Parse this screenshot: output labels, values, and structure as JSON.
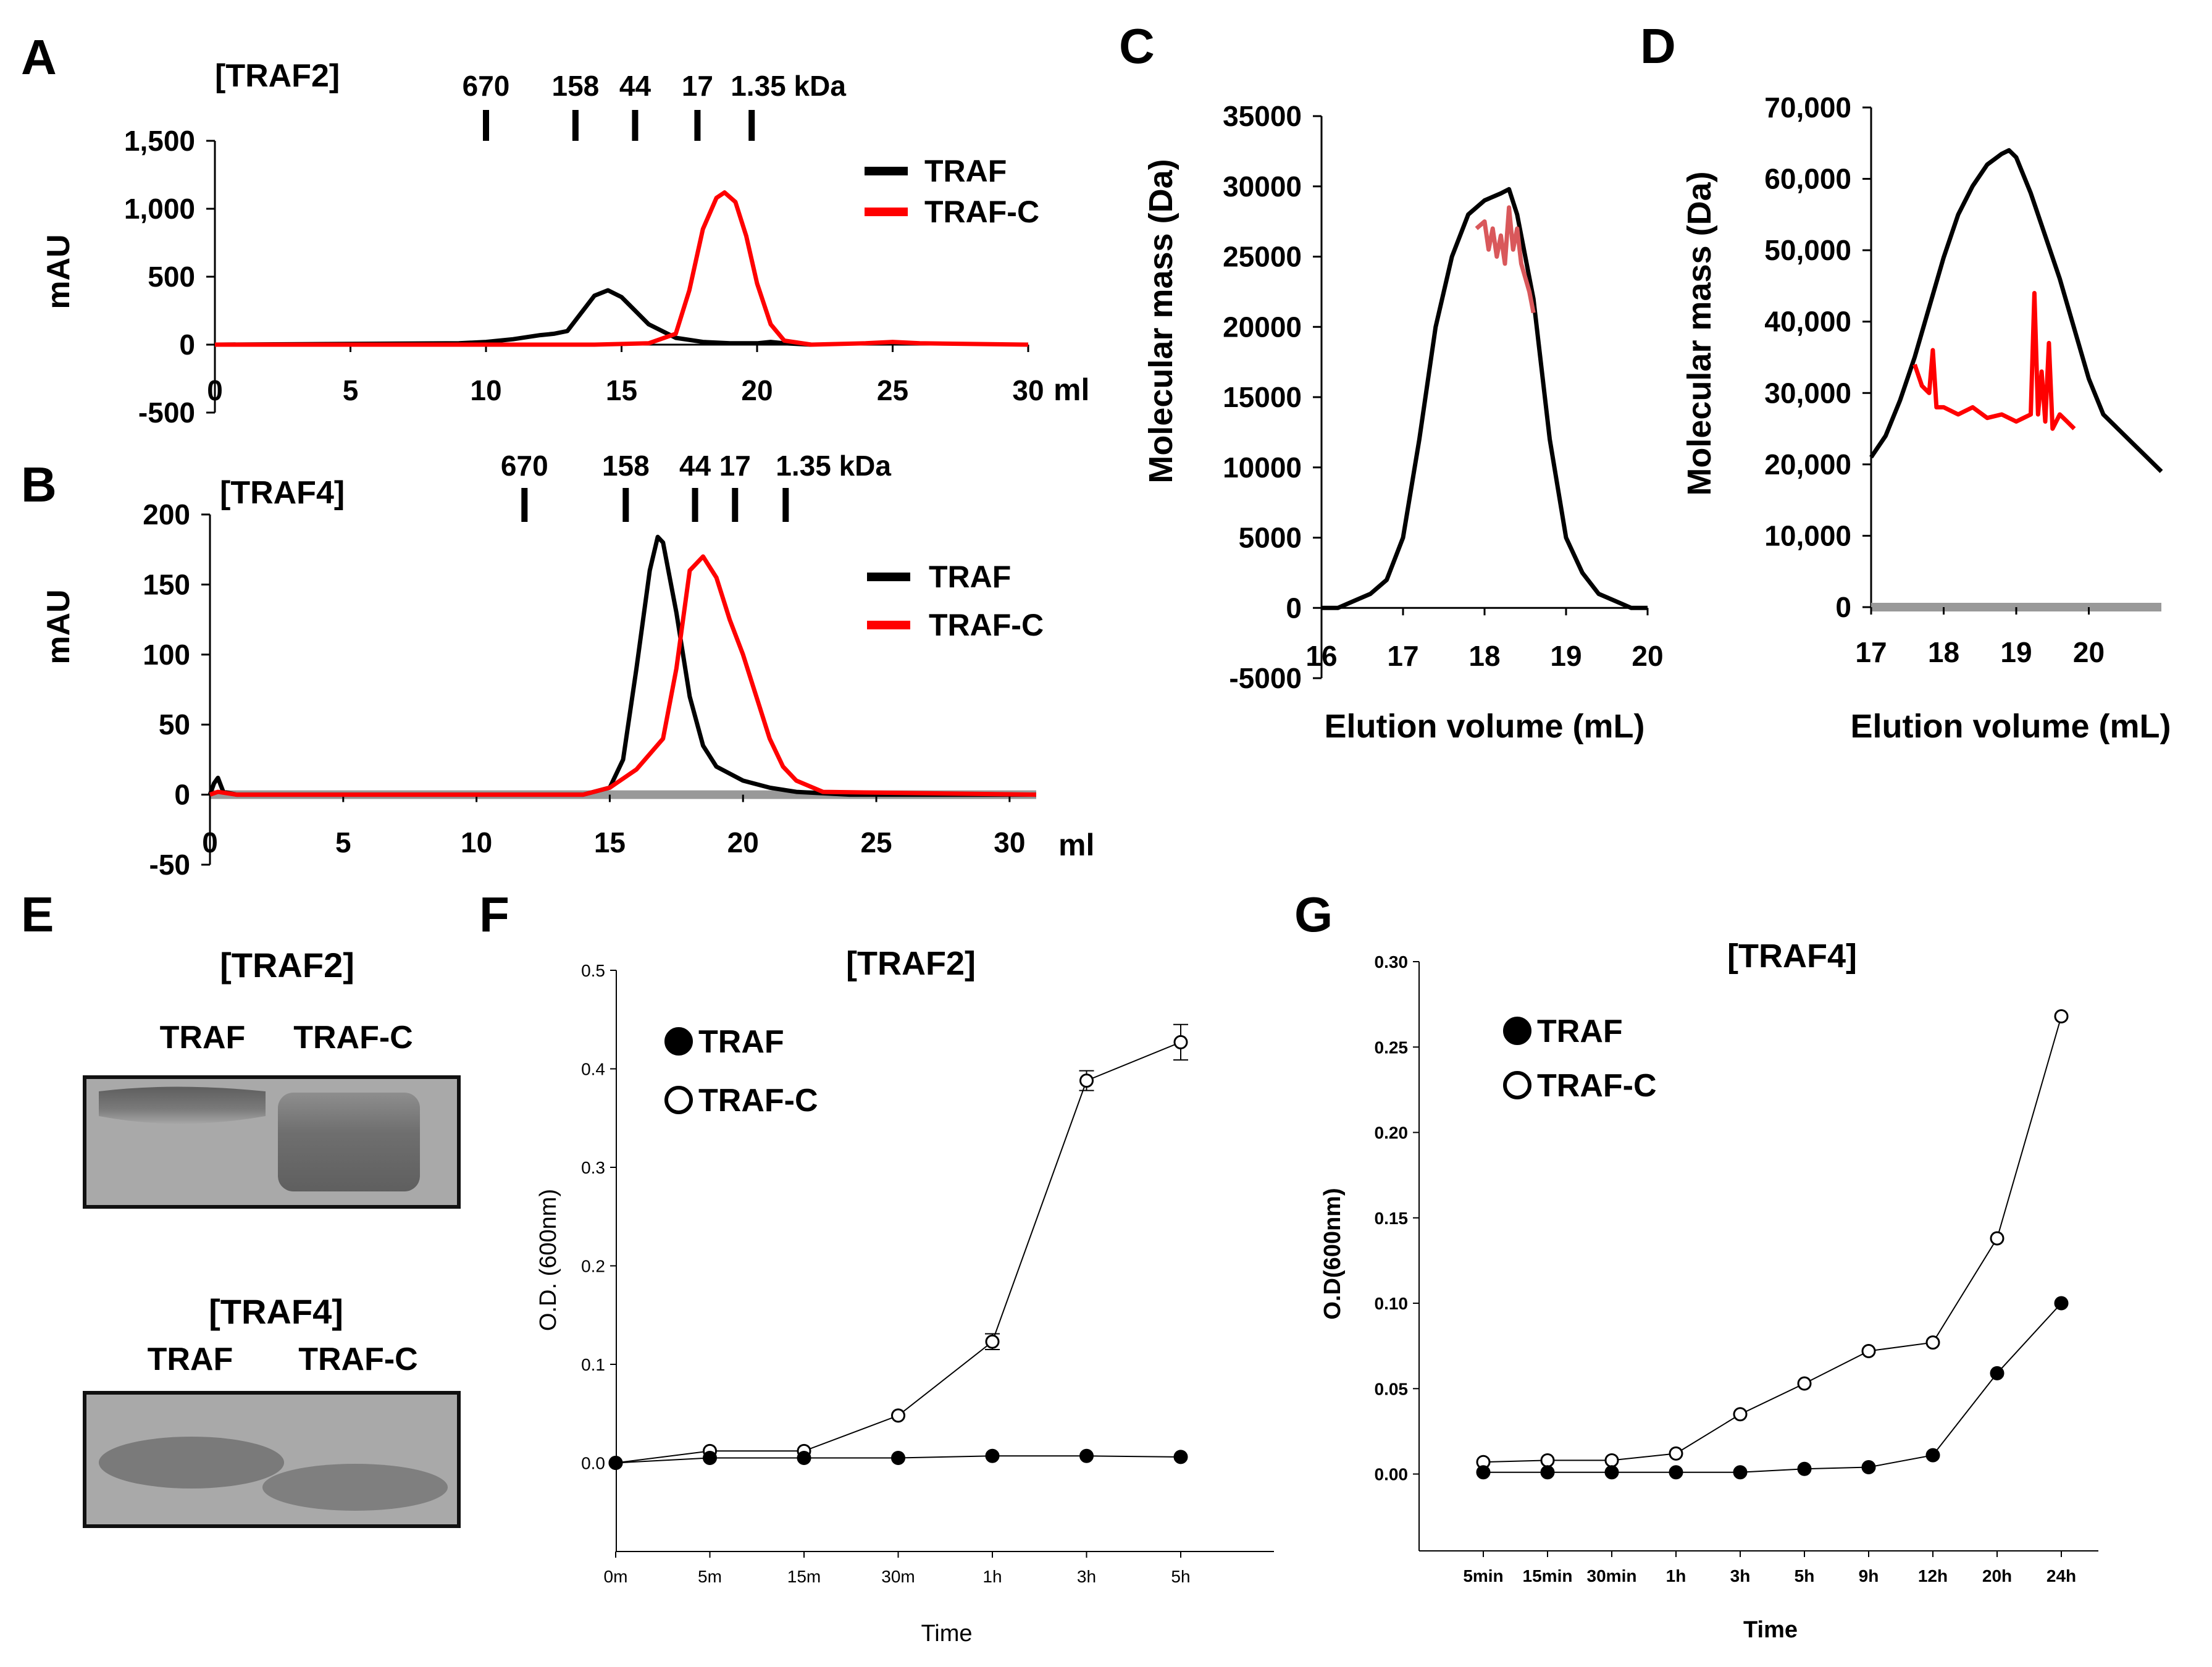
{
  "colors": {
    "traf": "#000000",
    "traf_c": "#ff0000",
    "traf_c_soft": "#d9585b",
    "axis": "#000000",
    "baseline": "#999999"
  },
  "panels": {
    "A": "A",
    "B": "B",
    "C": "C",
    "D": "D",
    "E": "E",
    "F": "F",
    "G": "G"
  },
  "chart_data": [
    {
      "panel": "A",
      "type": "line",
      "title": "[TRAF2]",
      "xlabel": "ml",
      "ylabel": "mAU",
      "xlim": [
        0,
        30
      ],
      "ylim": [
        -500,
        1500
      ],
      "xticks": [
        0,
        5,
        10,
        15,
        20,
        25,
        30
      ],
      "xtick_labels": [
        "0",
        "5",
        "10",
        "15",
        "20",
        "25",
        "30"
      ],
      "yticks": [
        1500,
        1000,
        500,
        0,
        -500
      ],
      "ytick_labels": [
        "1,500",
        "1,000",
        "500",
        "0",
        "-500"
      ],
      "markers": [
        {
          "label": "670",
          "x": 10.0
        },
        {
          "label": "158",
          "x": 13.3
        },
        {
          "label": "44",
          "x": 15.5
        },
        {
          "label": "17",
          "x": 17.8
        },
        {
          "label": "1.35 kDa",
          "x": 19.8
        }
      ],
      "legend": [
        {
          "name": "TRAF",
          "color": "#000000"
        },
        {
          "name": "TRAF-C",
          "color": "#ff0000"
        }
      ],
      "series": [
        {
          "name": "TRAF",
          "x": [
            0,
            9,
            10,
            11,
            12,
            12.5,
            13,
            13.5,
            14,
            14.5,
            15,
            15.5,
            16,
            17,
            18,
            19,
            20,
            20.5,
            21,
            22
          ],
          "y": [
            0,
            10,
            20,
            40,
            70,
            80,
            100,
            230,
            360,
            400,
            350,
            250,
            150,
            50,
            20,
            10,
            10,
            20,
            10,
            0
          ]
        },
        {
          "name": "TRAF-C",
          "x": [
            0,
            14,
            16,
            17,
            17.5,
            18,
            18.5,
            18.8,
            19.2,
            19.6,
            20,
            20.5,
            21,
            22,
            24,
            25,
            26,
            30
          ],
          "y": [
            0,
            0,
            10,
            80,
            400,
            850,
            1080,
            1120,
            1050,
            800,
            450,
            150,
            30,
            0,
            10,
            20,
            10,
            0
          ]
        }
      ]
    },
    {
      "panel": "B",
      "type": "line",
      "title": "[TRAF4]",
      "xlabel": "ml",
      "ylabel": "mAU",
      "xlim": [
        0,
        31
      ],
      "ylim": [
        -50,
        200
      ],
      "xticks": [
        0,
        5,
        10,
        15,
        20,
        25,
        30
      ],
      "xtick_labels": [
        "0",
        "5",
        "10",
        "15",
        "20",
        "25",
        "30"
      ],
      "yticks": [
        200,
        150,
        100,
        50,
        0,
        -50
      ],
      "ytick_labels": [
        "200",
        "150",
        "100",
        "50",
        "0",
        "-50"
      ],
      "markers": [
        {
          "label": "670",
          "x": 11.8
        },
        {
          "label": "158",
          "x": 15.6
        },
        {
          "label": "44",
          "x": 18.2
        },
        {
          "label": "17",
          "x": 19.7
        },
        {
          "label": "1.35 kDa",
          "x": 21.6
        }
      ],
      "legend": [
        {
          "name": "TRAF",
          "color": "#000000"
        },
        {
          "name": "TRAF-C",
          "color": "#ff0000"
        }
      ],
      "series": [
        {
          "name": "TRAF",
          "x": [
            0,
            0.15,
            0.3,
            0.5,
            1,
            14,
            15,
            15.5,
            16,
            16.5,
            16.8,
            17,
            17.5,
            18,
            18.5,
            19,
            20,
            21,
            22,
            24,
            31
          ],
          "y": [
            0,
            8,
            12,
            2,
            0,
            0,
            5,
            25,
            90,
            160,
            184,
            180,
            130,
            70,
            35,
            20,
            10,
            5,
            2,
            0,
            0
          ]
        },
        {
          "name": "TRAF-C",
          "x": [
            0,
            0.3,
            1,
            14,
            15,
            16,
            17,
            17.5,
            18,
            18.5,
            19,
            19.5,
            20,
            20.5,
            21,
            21.5,
            22,
            23,
            31
          ],
          "y": [
            0,
            2,
            0,
            0,
            5,
            18,
            40,
            90,
            160,
            170,
            155,
            125,
            100,
            70,
            40,
            20,
            10,
            2,
            0
          ]
        }
      ]
    },
    {
      "panel": "C",
      "type": "line",
      "xlabel": "Elution volume (mL)",
      "ylabel": "Molecular mass (Da)",
      "xlim": [
        16,
        20
      ],
      "ylim": [
        -5000,
        35000
      ],
      "xticks": [
        16,
        17,
        18,
        19,
        20
      ],
      "xtick_labels": [
        "16",
        "17",
        "18",
        "19",
        "20"
      ],
      "yticks": [
        35000,
        30000,
        25000,
        20000,
        15000,
        10000,
        5000,
        0,
        -5000
      ],
      "ytick_labels": [
        "35000",
        "30000",
        "25000",
        "20000",
        "15000",
        "10000",
        "5000",
        "0",
        "-5000"
      ],
      "series": [
        {
          "name": "TRAF",
          "x": [
            16,
            16.2,
            16.4,
            16.6,
            16.8,
            17.0,
            17.2,
            17.4,
            17.6,
            17.8,
            18.0,
            18.2,
            18.3,
            18.4,
            18.6,
            18.8,
            19.0,
            19.2,
            19.4,
            19.6,
            19.8,
            20.0
          ],
          "y": [
            0,
            0,
            500,
            1000,
            2000,
            5000,
            12000,
            20000,
            25000,
            28000,
            29000,
            29500,
            29800,
            28000,
            22000,
            12000,
            5000,
            2500,
            1000,
            500,
            0,
            0
          ]
        },
        {
          "name": "TRAF-C",
          "x": [
            17.9,
            18.0,
            18.05,
            18.1,
            18.15,
            18.2,
            18.25,
            18.3,
            18.35,
            18.4,
            18.45,
            18.5,
            18.55,
            18.6
          ],
          "y": [
            27000,
            27500,
            25500,
            27000,
            25000,
            26500,
            24500,
            28500,
            25500,
            27000,
            24500,
            23500,
            22500,
            21000
          ]
        }
      ]
    },
    {
      "panel": "D",
      "type": "line",
      "xlabel": "Elution volume (mL)",
      "ylabel": "Molecular mass (Da)",
      "xlim": [
        17,
        21
      ],
      "ylim": [
        0,
        70000
      ],
      "xticks": [
        17,
        18,
        19,
        20
      ],
      "xtick_labels": [
        "17",
        "18",
        "19",
        "20"
      ],
      "yticks": [
        70000,
        60000,
        50000,
        40000,
        30000,
        20000,
        10000,
        0
      ],
      "ytick_labels": [
        "70,000",
        "60,000",
        "50,000",
        "40,000",
        "30,000",
        "20,000",
        "10,000",
        "0"
      ],
      "series": [
        {
          "name": "TRAF",
          "x": [
            17.0,
            17.2,
            17.4,
            17.6,
            17.8,
            18.0,
            18.2,
            18.4,
            18.6,
            18.8,
            18.9,
            19.0,
            19.2,
            19.4,
            19.6,
            19.8,
            20.0,
            20.2,
            20.4,
            20.6,
            20.8,
            21.0
          ],
          "y": [
            21000,
            24000,
            29000,
            35000,
            42000,
            49000,
            55000,
            59000,
            62000,
            63500,
            64000,
            63000,
            58000,
            52000,
            46000,
            39000,
            32000,
            27000,
            25000,
            23000,
            21000,
            19000
          ]
        },
        {
          "name": "TRAF-C",
          "x": [
            17.6,
            17.7,
            17.8,
            17.85,
            17.9,
            18.0,
            18.2,
            18.4,
            18.6,
            18.8,
            19.0,
            19.1,
            19.2,
            19.25,
            19.3,
            19.35,
            19.4,
            19.45,
            19.5,
            19.6,
            19.7,
            19.8
          ],
          "y": [
            34000,
            31000,
            30000,
            36000,
            28000,
            28000,
            27000,
            28000,
            26500,
            27000,
            26000,
            26500,
            27000,
            44000,
            27000,
            33000,
            26000,
            37000,
            25000,
            27000,
            26000,
            25000
          ]
        }
      ]
    },
    {
      "panel": "F",
      "type": "line",
      "title": "[TRAF2]",
      "xlabel": "Time",
      "ylabel": "O.D. (600nm)",
      "ylim": [
        -0.09,
        0.5
      ],
      "categories": [
        "0m",
        "5m",
        "15m",
        "30m",
        "1h",
        "3h",
        "5h"
      ],
      "yticks": [
        0.5,
        0.4,
        0.3,
        0.2,
        0.1,
        0.0
      ],
      "ytick_labels": [
        "0.5",
        "0.4",
        "0.3",
        "0.2",
        "0.1",
        "0.0"
      ],
      "legend": [
        {
          "name": "TRAF",
          "marker": "filled"
        },
        {
          "name": "TRAF-C",
          "marker": "open"
        }
      ],
      "series": [
        {
          "name": "TRAF",
          "values": [
            0.0,
            0.005,
            0.005,
            0.005,
            0.007,
            0.007,
            0.006
          ]
        },
        {
          "name": "TRAF-C",
          "values": [
            0.0,
            0.012,
            0.012,
            0.048,
            0.123,
            0.388,
            0.427
          ],
          "errors": [
            0,
            0,
            0,
            0,
            0.008,
            0.01,
            0.018
          ]
        }
      ]
    },
    {
      "panel": "G",
      "type": "line",
      "title": "[TRAF4]",
      "xlabel": "Time",
      "ylabel": "O.D(600nm)",
      "ylim": [
        -0.045,
        0.3
      ],
      "categories": [
        "5min",
        "15min",
        "30min",
        "1h",
        "3h",
        "5h",
        "9h",
        "12h",
        "20h",
        "24h"
      ],
      "yticks": [
        0.3,
        0.25,
        0.2,
        0.15,
        0.1,
        0.05,
        0.0
      ],
      "ytick_labels": [
        "0.30",
        "0.25",
        "0.20",
        "0.15",
        "0.10",
        "0.05",
        "0.00"
      ],
      "legend": [
        {
          "name": "TRAF",
          "marker": "filled"
        },
        {
          "name": "TRAF-C",
          "marker": "open"
        }
      ],
      "series": [
        {
          "name": "TRAF",
          "values": [
            0.001,
            0.001,
            0.001,
            0.001,
            0.001,
            0.003,
            0.004,
            0.011,
            0.059,
            0.1
          ]
        },
        {
          "name": "TRAF-C",
          "values": [
            0.007,
            0.008,
            0.008,
            0.012,
            0.035,
            0.053,
            0.072,
            0.077,
            0.138,
            0.268
          ]
        }
      ]
    }
  ],
  "gels": {
    "traf2": {
      "title": "[TRAF2]",
      "lane1": "TRAF",
      "lane2": "TRAF-C"
    },
    "traf4": {
      "title": "[TRAF4]",
      "lane1": "TRAF",
      "lane2": "TRAF-C"
    }
  }
}
